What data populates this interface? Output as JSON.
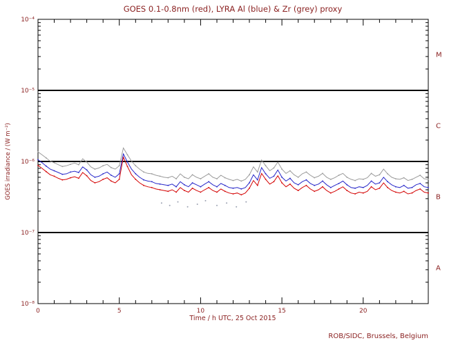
{
  "chart_data": {
    "type": "line",
    "title": "GOES 0.1-0.8nm (red), LYRA Al (blue) & Zr (grey) proxy",
    "xlabel": "Time / h UTC, 25 Oct 2015",
    "ylabel": "GOES irradiance / (W m⁻²)",
    "credit": "ROB/SIDC, Brussels, Belgium",
    "colors": {
      "text": "#8b2222",
      "axis": "#000000",
      "goes_red": "#d40000",
      "lyra_al_blue": "#2626c9",
      "lyra_zr_grey": "#9a9a9a",
      "background": "#ffffff"
    },
    "x_range": [
      0,
      24
    ],
    "x_major_ticks": [
      0,
      5,
      10,
      15,
      20
    ],
    "x_minor_step": 1,
    "y_exp_range": [
      -8,
      -4
    ],
    "y_tick_labels": [
      {
        "exp": -4,
        "label": "10⁻⁴"
      },
      {
        "exp": -5,
        "label": "10⁻⁵"
      },
      {
        "exp": -6,
        "label": "10⁻⁶"
      },
      {
        "exp": -7,
        "label": "10⁻⁷"
      },
      {
        "exp": -8,
        "label": "10⁻⁸"
      }
    ],
    "hline_exponents": [
      -5,
      -6,
      -7
    ],
    "flare_classes": [
      {
        "label": "M",
        "between": [
          -5,
          -4
        ]
      },
      {
        "label": "C",
        "between": [
          -6,
          -5
        ]
      },
      {
        "label": "B",
        "between": [
          -7,
          -6
        ]
      },
      {
        "label": "A",
        "between": [
          -8,
          -7
        ]
      }
    ],
    "x_start": 0,
    "x_step": 0.25,
    "unit_scale": 1e-07,
    "series": [
      {
        "id": "lyra-zr",
        "name": "LYRA Zr proxy",
        "color": "#9a9a9a",
        "values": [
          13.6,
          12.4,
          11.2,
          10.1,
          9.6,
          9.0,
          8.5,
          8.7,
          9.1,
          9.5,
          9.0,
          10.9,
          9.8,
          8.4,
          7.8,
          8.1,
          8.7,
          9.1,
          8.2,
          7.8,
          8.7,
          15.5,
          12.4,
          10.1,
          8.7,
          7.8,
          7.1,
          6.8,
          6.7,
          6.4,
          6.2,
          6.0,
          5.9,
          6.2,
          5.7,
          6.7,
          6.0,
          5.7,
          6.5,
          6.0,
          5.7,
          6.2,
          6.7,
          6.0,
          5.7,
          6.4,
          5.9,
          5.6,
          5.4,
          5.6,
          5.3,
          5.6,
          6.5,
          8.4,
          7.1,
          10.5,
          8.7,
          7.4,
          8.1,
          9.8,
          7.8,
          6.8,
          7.4,
          6.5,
          6.0,
          6.7,
          7.1,
          6.4,
          5.9,
          6.2,
          6.8,
          6.0,
          5.6,
          5.9,
          6.4,
          6.8,
          6.0,
          5.6,
          5.4,
          5.7,
          5.6,
          5.9,
          6.8,
          6.2,
          6.5,
          7.8,
          6.7,
          6.0,
          5.7,
          5.6,
          5.9,
          5.4,
          5.6,
          6.0,
          6.4,
          5.7,
          5.6
        ]
      },
      {
        "id": "lyra-al",
        "name": "LYRA Al proxy",
        "color": "#2626c9",
        "values": [
          10.6,
          9.6,
          8.6,
          7.8,
          7.4,
          7.0,
          6.6,
          6.7,
          7.1,
          7.3,
          7.0,
          8.4,
          7.6,
          6.5,
          6.0,
          6.2,
          6.7,
          7.1,
          6.4,
          6.0,
          6.7,
          12.8,
          9.8,
          7.8,
          6.7,
          6.0,
          5.5,
          5.3,
          5.2,
          4.9,
          4.8,
          4.7,
          4.6,
          4.8,
          4.4,
          5.2,
          4.7,
          4.4,
          5.0,
          4.7,
          4.4,
          4.8,
          5.2,
          4.7,
          4.4,
          4.9,
          4.6,
          4.3,
          4.2,
          4.3,
          4.1,
          4.3,
          5.0,
          6.5,
          5.5,
          8.2,
          6.7,
          5.8,
          6.2,
          7.6,
          6.0,
          5.3,
          5.8,
          5.0,
          4.7,
          5.2,
          5.5,
          4.9,
          4.6,
          4.8,
          5.3,
          4.7,
          4.3,
          4.6,
          4.9,
          5.3,
          4.7,
          4.3,
          4.2,
          4.4,
          4.3,
          4.6,
          5.3,
          4.8,
          5.0,
          6.0,
          5.2,
          4.7,
          4.4,
          4.3,
          4.6,
          4.2,
          4.3,
          4.7,
          4.9,
          4.4,
          4.3
        ]
      },
      {
        "id": "goes",
        "name": "GOES 0.1-0.8nm",
        "color": "#d40000",
        "values": [
          8.8,
          8.0,
          7.2,
          6.5,
          6.2,
          5.8,
          5.5,
          5.6,
          5.9,
          6.1,
          5.8,
          7.0,
          6.3,
          5.4,
          5.0,
          5.2,
          5.6,
          5.9,
          5.3,
          5.0,
          5.6,
          11.5,
          8.5,
          6.5,
          5.6,
          5.0,
          4.6,
          4.4,
          4.3,
          4.1,
          4.0,
          3.9,
          3.8,
          4.0,
          3.7,
          4.3,
          3.9,
          3.7,
          4.2,
          3.9,
          3.7,
          4.0,
          4.3,
          3.9,
          3.7,
          4.1,
          3.8,
          3.6,
          3.5,
          3.6,
          3.4,
          3.6,
          4.2,
          5.4,
          4.6,
          6.8,
          5.6,
          4.8,
          5.2,
          6.3,
          5.0,
          4.4,
          4.8,
          4.2,
          3.9,
          4.3,
          4.6,
          4.1,
          3.8,
          4.0,
          4.4,
          3.9,
          3.6,
          3.8,
          4.1,
          4.4,
          3.9,
          3.6,
          3.5,
          3.7,
          3.6,
          3.8,
          4.4,
          4.0,
          4.2,
          5.0,
          4.3,
          3.9,
          3.7,
          3.6,
          3.8,
          3.5,
          3.6,
          3.9,
          4.1,
          3.7,
          3.6
        ]
      }
    ],
    "dropout_points": {
      "color": "#9aa0b0",
      "x": [
        7.6,
        8.1,
        8.6,
        9.2,
        9.8,
        10.3,
        11.0,
        11.6,
        12.2,
        12.8
      ],
      "values": [
        2.6,
        2.4,
        2.7,
        2.3,
        2.5,
        2.8,
        2.4,
        2.6,
        2.3,
        2.7
      ]
    }
  }
}
